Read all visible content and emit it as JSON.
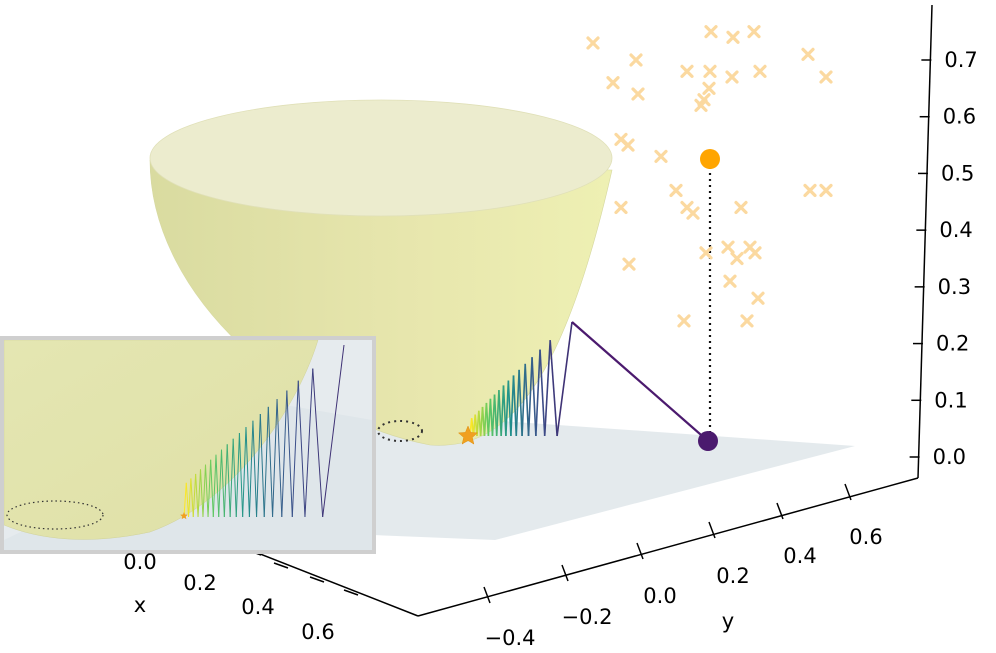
{
  "chart_data": {
    "type": "scatter",
    "projection": "3d",
    "axes": {
      "x": {
        "label": "x",
        "ticks": [
          "0.0",
          "0.2",
          "0.4",
          "0.6"
        ]
      },
      "y": {
        "label": "y",
        "ticks": [
          "−0.4",
          "−0.2",
          "0.0",
          "0.2",
          "0.4",
          "0.6"
        ]
      },
      "z": {
        "label": "",
        "ticks": [
          "0.0",
          "0.1",
          "0.2",
          "0.3",
          "0.4",
          "0.5",
          "0.6",
          "0.7"
        ],
        "range": [
          0,
          0.75
        ]
      }
    },
    "surface": {
      "type": "paraboloid bowl",
      "color": "#e4e2a0"
    },
    "plane": {
      "z": 0,
      "color": "#dfe6ea"
    },
    "start_point": {
      "color": "#ffa500",
      "z": 0.51
    },
    "start_projection": {
      "color": "#4b1a6e",
      "z": 0.0
    },
    "minimum_marker": {
      "shape": "star",
      "color": "#f0a020"
    },
    "scatter_samples": {
      "marker": "x",
      "color": "#fbd9a0",
      "z_values": [
        0.75,
        0.74,
        0.75,
        0.73,
        0.7,
        0.71,
        0.67,
        0.68,
        0.68,
        0.68,
        0.66,
        0.67,
        0.64,
        0.63,
        0.65,
        0.62,
        0.56,
        0.53,
        0.55,
        0.47,
        0.47,
        0.44,
        0.44,
        0.44,
        0.47,
        0.43,
        0.36,
        0.36,
        0.37,
        0.37,
        0.35,
        0.34,
        0.31,
        0.28,
        0.24,
        0.24
      ]
    },
    "zigzag_path": {
      "colormap": "viridis",
      "description": "descent path from start projection to minimum"
    },
    "minimum_contour": {
      "style": "dotted ellipse",
      "color": "#333333"
    },
    "inset": {
      "zoom": "region near minimum with zigzag path"
    },
    "colors": {
      "plane": "#dfe6ea",
      "surface": "#e4e2a0",
      "start": "#ffa500",
      "projection": "#4b1a6e",
      "samples": "#fbd9a0"
    }
  }
}
